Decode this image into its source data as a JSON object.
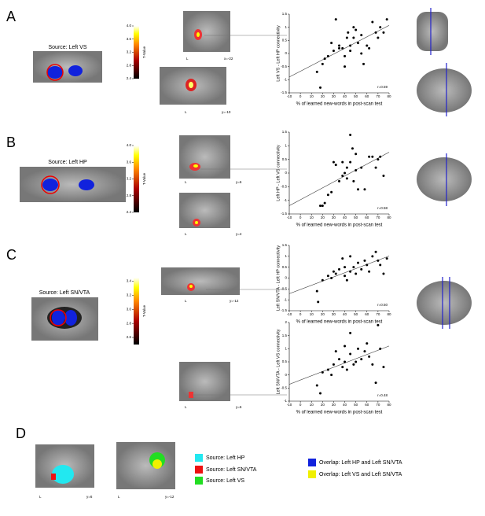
{
  "figure": {
    "panels": [
      {
        "label": "A",
        "source": "Source: Left VS",
        "colorbar": {
          "label": "T-Value",
          "lim": [
            2.4,
            4.0
          ],
          "ticks": [
            {
              "value": 4,
              "label": "4.0"
            },
            3.6,
            3.2,
            2.8,
            2.4
          ]
        },
        "slices": [
          {
            "side": "L",
            "coord": "x=-22"
          },
          {
            "side": "L",
            "coord": "y=-10"
          }
        ]
      },
      {
        "label": "B",
        "source": "Source: Left HP",
        "colorbar": {
          "label": "T-Value",
          "lim": [
            2.4,
            4.0
          ],
          "ticks": [
            {
              "value": 4,
              "label": "4.0"
            },
            3.6,
            3.2,
            2.8,
            2.4
          ]
        },
        "slices": [
          {
            "side": "L",
            "coord": "y=6"
          },
          {
            "side": "L",
            "coord": "y=4"
          }
        ]
      },
      {
        "label": "C",
        "source": "Source: Left SN/VTA",
        "colorbar": {
          "label": "T-Value",
          "lim": [
            2.5,
            3.45
          ],
          "ticks": [
            3.4,
            3.2,
            {
              "value": 3,
              "label": "3.0"
            },
            2.8,
            2.6
          ]
        },
        "slices": [
          {
            "side": "L",
            "coord": "y=-12"
          },
          {
            "side": "L",
            "coord": "y=6"
          }
        ]
      },
      {
        "label": "D",
        "slices": [
          {
            "side": "L",
            "coord": "y=6"
          },
          {
            "side": "L",
            "coord": "y=-12"
          }
        ]
      }
    ],
    "legend": [
      {
        "label": "Source: Left HP",
        "color": "#22e8f0"
      },
      {
        "label": "Source: Left SN/VTA",
        "color": "#ee1111"
      },
      {
        "label": "Source: Left VS",
        "color": "#22dd22"
      },
      {
        "label": "Overlap: Left HP and Left SN/VTA",
        "color": "#1122dd"
      },
      {
        "label": "Overlap: Left VS and Left SN/VTA",
        "color": "#f0f000"
      }
    ]
  },
  "chart_data": [
    {
      "type": "scatter",
      "xlabel": "% of learned new-words in post-scan test",
      "ylabel": "Left VS - Left HP connectivity",
      "annotation": "r=0.59",
      "x": [
        18,
        15,
        20,
        22,
        25,
        28,
        30,
        32,
        35,
        35,
        38,
        40,
        40,
        42,
        43,
        45,
        45,
        48,
        48,
        50,
        52,
        55,
        55,
        57,
        60,
        62,
        65,
        68,
        70,
        72,
        75,
        78
      ],
      "y": [
        -1.3,
        -0.7,
        -0.4,
        -0.2,
        -0.1,
        0.4,
        0.1,
        1.3,
        0.3,
        0.2,
        0.2,
        -0.1,
        -0.5,
        0.6,
        0.8,
        0.3,
        0.1,
        0.6,
        1,
        0.9,
        0.4,
        0.7,
        0,
        -0.4,
        0.3,
        0.2,
        1.2,
        0.8,
        0.6,
        1,
        0.8,
        1.3
      ],
      "xlim": [
        -10,
        80
      ],
      "ylim": [
        -1.5,
        1.5
      ],
      "xticks": [
        -10,
        0,
        10,
        20,
        30,
        40,
        50,
        60,
        70,
        80
      ],
      "yticks": [
        -1.5,
        -1,
        -0.5,
        0,
        0.5,
        1,
        1.5
      ],
      "color": "#000000"
    },
    {
      "type": "scatter",
      "xlabel": "% of learned new-words in post-scan test",
      "ylabel": "Left HP - Left VS connectivity",
      "annotation": "r=0.58",
      "x": [
        18,
        20,
        22,
        25,
        28,
        30,
        32,
        35,
        38,
        38,
        40,
        42,
        42,
        45,
        45,
        47,
        48,
        50,
        50,
        52,
        55,
        58,
        62,
        65,
        68,
        70,
        72,
        75
      ],
      "y": [
        -1.2,
        -1.2,
        -1.1,
        -0.8,
        -0.7,
        0.4,
        0.3,
        -0.3,
        -0.1,
        0.4,
        0,
        0.2,
        -0.2,
        0.4,
        1.4,
        0.9,
        -0.3,
        0.1,
        0.7,
        -0.6,
        0.2,
        -0.6,
        0.6,
        0.6,
        0.2,
        0.5,
        0.6,
        -0.1
      ],
      "xlim": [
        -10,
        80
      ],
      "ylim": [
        -1.5,
        1.5
      ],
      "xticks": [
        -10,
        0,
        10,
        20,
        30,
        40,
        50,
        60,
        70,
        80
      ],
      "yticks": [
        -1.5,
        -1,
        -0.5,
        0,
        0.5,
        1,
        1.5
      ],
      "color": "#000000"
    },
    {
      "type": "scatter",
      "xlabel": "% of learned new-words in post-scan test",
      "ylabel": "Left SN/VTA - Left HP connectivity",
      "annotation": "r=0.50",
      "x": [
        15,
        16,
        20,
        25,
        28,
        30,
        32,
        35,
        38,
        40,
        40,
        42,
        45,
        45,
        48,
        50,
        52,
        55,
        58,
        60,
        62,
        65,
        68,
        70,
        72,
        75,
        78
      ],
      "y": [
        -0.6,
        -1.1,
        -0.1,
        0.1,
        0,
        0.3,
        0.2,
        0.4,
        0.9,
        0.5,
        0.1,
        -0.1,
        1,
        0.3,
        0.5,
        0.2,
        0.7,
        0.4,
        0.8,
        0.6,
        0.3,
        1,
        1.2,
        0.8,
        0.6,
        0.2,
        0.9
      ],
      "xlim": [
        -10,
        80
      ],
      "ylim": [
        -1.5,
        1.5
      ],
      "xticks": [
        -10,
        0,
        10,
        20,
        30,
        40,
        50,
        60,
        70,
        80
      ],
      "yticks": [
        -1.5,
        -1,
        -0.5,
        0,
        0.5,
        1,
        1.5
      ],
      "color": "#000000"
    },
    {
      "type": "scatter",
      "xlabel": "% of learned new-words in post-scan test",
      "ylabel": "Left SN/VTA - Left VS connectivity",
      "annotation": "r=0.48",
      "x": [
        15,
        18,
        20,
        25,
        28,
        30,
        32,
        35,
        38,
        40,
        40,
        42,
        45,
        45,
        48,
        50,
        52,
        55,
        58,
        60,
        62,
        65,
        68,
        70,
        72,
        75
      ],
      "y": [
        -0.4,
        -0.7,
        0.1,
        0.2,
        0,
        0.4,
        0.9,
        0.6,
        0.3,
        1.1,
        0.5,
        0.2,
        1.6,
        0.8,
        0.4,
        0.5,
        1,
        0.6,
        0.9,
        1.2,
        0.7,
        0.4,
        -0.3,
        1.9,
        1.0,
        0.3
      ],
      "xlim": [
        -10,
        80
      ],
      "ylim": [
        -1,
        2
      ],
      "xticks": [
        -10,
        0,
        10,
        20,
        30,
        40,
        50,
        60,
        70,
        80
      ],
      "yticks": [
        -1,
        -0.5,
        0,
        0.5,
        1,
        1.5,
        2
      ],
      "color": "#000000"
    }
  ]
}
